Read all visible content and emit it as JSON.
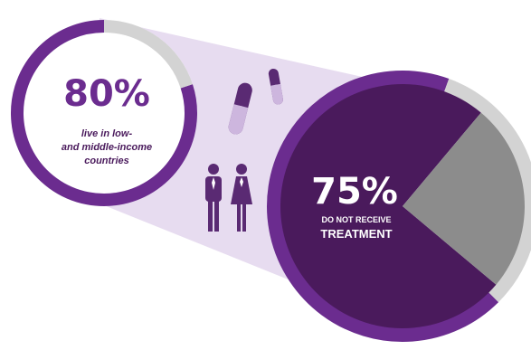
{
  "colors": {
    "purple_dark": "#4a1a5c",
    "purple_ring": "#6b2c8f",
    "purple_light_band": "#e4d8ee",
    "gray_slice": "#8c8c8c",
    "ring_gray": "#d3d3d3",
    "white": "#ffffff"
  },
  "icons": [
    "capsule-icon",
    "capsule-icon",
    "man-icon",
    "woman-icon"
  ],
  "chart_data": [
    {
      "type": "pie",
      "label": "80%",
      "caption_lines": [
        "live in low-",
        "and middle-income",
        "countries"
      ],
      "slices": [
        {
          "value": 80,
          "color": "#6b2c8f"
        },
        {
          "value": 20,
          "color": "#d3d3d3"
        }
      ]
    },
    {
      "type": "pie",
      "label": "75%",
      "caption_lines": [
        "DO NOT RECEIVE",
        "TREATMENT"
      ],
      "slices": [
        {
          "value": 75,
          "color": "#4a1a5c"
        },
        {
          "value": 25,
          "color": "#8c8c8c"
        }
      ]
    }
  ]
}
